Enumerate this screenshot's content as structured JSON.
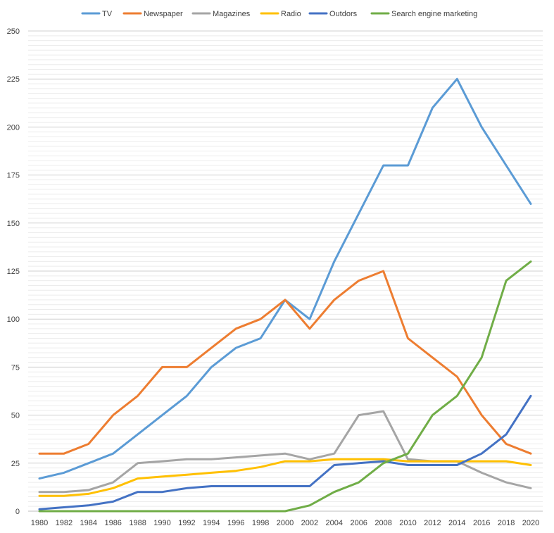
{
  "chart_data": {
    "type": "line",
    "title": "",
    "xlabel": "",
    "ylabel": "",
    "ylim": [
      0,
      250
    ],
    "yticks": [
      0,
      25,
      50,
      75,
      100,
      125,
      150,
      175,
      200,
      225,
      250
    ],
    "grid": true,
    "legend_position": "top",
    "x": [
      "1980",
      "1982",
      "1984",
      "1986",
      "1988",
      "1990",
      "1992",
      "1994",
      "1996",
      "1998",
      "2000",
      "2002",
      "2004",
      "2006",
      "2008",
      "2010",
      "2012",
      "2014",
      "2016",
      "2018",
      "2020"
    ],
    "series": [
      {
        "name": "TV",
        "color": "#5B9BD5",
        "values": [
          17,
          20,
          25,
          30,
          40,
          50,
          60,
          75,
          85,
          90,
          110,
          100,
          130,
          155,
          180,
          180,
          210,
          225,
          200,
          180,
          160
        ]
      },
      {
        "name": "Newspaper",
        "color": "#ED7D31",
        "values": [
          30,
          30,
          35,
          50,
          60,
          75,
          75,
          85,
          95,
          100,
          110,
          95,
          110,
          120,
          125,
          90,
          80,
          70,
          50,
          35,
          30
        ]
      },
      {
        "name": "Magazines",
        "color": "#A5A5A5",
        "values": [
          10,
          10,
          11,
          15,
          25,
          26,
          27,
          27,
          28,
          29,
          30,
          27,
          30,
          50,
          52,
          27,
          26,
          26,
          20,
          15,
          12
        ]
      },
      {
        "name": "Radio",
        "color": "#FFC000",
        "values": [
          8,
          8,
          9,
          12,
          17,
          18,
          19,
          20,
          21,
          23,
          26,
          26,
          27,
          27,
          27,
          26,
          26,
          26,
          26,
          26,
          24
        ]
      },
      {
        "name": "Outdors",
        "color": "#4472C4",
        "values": [
          1,
          2,
          3,
          5,
          10,
          10,
          12,
          13,
          13,
          13,
          13,
          13,
          24,
          25,
          26,
          24,
          24,
          24,
          30,
          40,
          60
        ]
      },
      {
        "name": "Search engine marketing",
        "color": "#70AD47",
        "values": [
          0,
          0,
          0,
          0,
          0,
          0,
          0,
          0,
          0,
          0,
          0,
          3,
          10,
          15,
          25,
          30,
          50,
          60,
          80,
          120,
          130
        ]
      }
    ]
  }
}
